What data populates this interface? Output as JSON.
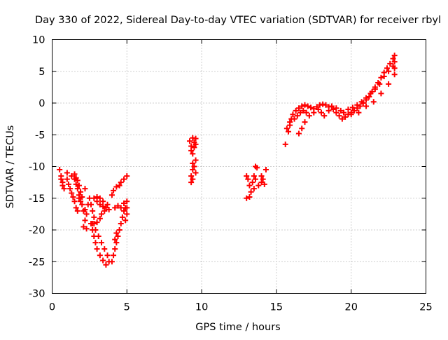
{
  "chart_data": {
    "type": "scatter",
    "title": "Day 330 of 2022, Sidereal Day-to-day VTEC variation (SDTVAR) for receiver rbyl",
    "xlabel": "GPS time / hours",
    "ylabel": "SDTVAR / TECUs",
    "xlim": [
      0,
      25
    ],
    "ylim": [
      -30,
      10
    ],
    "xticks": [
      0,
      5,
      10,
      15,
      20,
      25
    ],
    "yticks": [
      -30,
      -25,
      -20,
      -15,
      -10,
      -5,
      0,
      5,
      10
    ],
    "grid": true,
    "legend": "none",
    "marker": "plus",
    "color": "#ff0000",
    "series": [
      {
        "values": [
          [
            0.5,
            -10.5
          ],
          [
            0.6,
            -11.5
          ],
          [
            0.7,
            -12.5
          ],
          [
            0.8,
            -13.5
          ],
          [
            0.6,
            -12.0
          ],
          [
            0.7,
            -13.0
          ],
          [
            1.0,
            -11.0
          ],
          [
            1.0,
            -12.0
          ],
          [
            1.1,
            -12.8
          ],
          [
            1.2,
            -13.5
          ],
          [
            1.3,
            -14.2
          ],
          [
            1.4,
            -14.8
          ],
          [
            1.5,
            -15.5
          ],
          [
            1.6,
            -16.5
          ],
          [
            1.7,
            -17.0
          ],
          [
            1.3,
            -11.5
          ],
          [
            1.5,
            -12.0
          ],
          [
            1.6,
            -12.8
          ],
          [
            1.7,
            -13.5
          ],
          [
            1.8,
            -14.5
          ],
          [
            1.9,
            -15.5
          ],
          [
            1.5,
            -11.2
          ],
          [
            1.6,
            -11.8
          ],
          [
            1.7,
            -12.2
          ],
          [
            1.8,
            -13.0
          ],
          [
            1.9,
            -14.0
          ],
          [
            2.0,
            -14.8
          ],
          [
            1.8,
            -15.0
          ],
          [
            2.0,
            -16.0
          ],
          [
            2.1,
            -17.0
          ],
          [
            2.2,
            -18.5
          ],
          [
            2.1,
            -19.5
          ],
          [
            2.3,
            -19.8
          ],
          [
            2.2,
            -16.8
          ],
          [
            2.3,
            -17.5
          ],
          [
            2.4,
            -16.0
          ],
          [
            2.2,
            -13.5
          ],
          [
            2.5,
            -15.0
          ],
          [
            2.6,
            -16.0
          ],
          [
            2.7,
            -17.0
          ],
          [
            2.8,
            -18.0
          ],
          [
            2.6,
            -19.0
          ],
          [
            2.7,
            -20.0
          ],
          [
            2.8,
            -21.0
          ],
          [
            2.9,
            -22.0
          ],
          [
            3.0,
            -23.0
          ],
          [
            3.2,
            -24.0
          ],
          [
            3.4,
            -24.8
          ],
          [
            3.6,
            -25.5
          ],
          [
            2.7,
            -19.0
          ],
          [
            2.9,
            -20.0
          ],
          [
            3.1,
            -21.0
          ],
          [
            3.3,
            -22.0
          ],
          [
            3.5,
            -23.0
          ],
          [
            3.7,
            -24.0
          ],
          [
            3.8,
            -25.0
          ],
          [
            3.0,
            -15.5
          ],
          [
            3.2,
            -16.0
          ],
          [
            3.4,
            -16.3
          ],
          [
            3.6,
            -16.5
          ],
          [
            3.8,
            -16.8
          ],
          [
            3.3,
            -17.5
          ],
          [
            3.2,
            -18.2
          ],
          [
            3.0,
            -18.8
          ],
          [
            2.8,
            -19.0
          ],
          [
            3.5,
            -17.0
          ],
          [
            3.7,
            -16.0
          ],
          [
            2.8,
            -15.0
          ],
          [
            3.0,
            -14.8
          ],
          [
            3.2,
            -15.0
          ],
          [
            3.4,
            -15.5
          ],
          [
            4.0,
            -25.0
          ],
          [
            4.1,
            -24.0
          ],
          [
            4.2,
            -23.0
          ],
          [
            4.3,
            -22.0
          ],
          [
            4.4,
            -21.0
          ],
          [
            4.5,
            -20.0
          ],
          [
            4.6,
            -19.0
          ],
          [
            4.7,
            -18.0
          ],
          [
            4.8,
            -17.0
          ],
          [
            4.9,
            -16.5
          ],
          [
            4.2,
            -21.5
          ],
          [
            4.3,
            -20.5
          ],
          [
            4.0,
            -14.5
          ],
          [
            4.1,
            -13.8
          ],
          [
            4.3,
            -13.2
          ],
          [
            4.5,
            -13.0
          ],
          [
            4.6,
            -12.5
          ],
          [
            4.8,
            -12.0
          ],
          [
            5.0,
            -11.5
          ],
          [
            4.2,
            -16.5
          ],
          [
            4.4,
            -16.2
          ],
          [
            4.6,
            -16.5
          ],
          [
            4.8,
            -15.8
          ],
          [
            5.0,
            -15.5
          ],
          [
            5.0,
            -16.5
          ],
          [
            5.0,
            -17.5
          ],
          [
            4.9,
            -18.5
          ],
          [
            9.2,
            -6.0
          ],
          [
            9.3,
            -6.8
          ],
          [
            9.3,
            -7.5
          ],
          [
            9.4,
            -8.0
          ],
          [
            9.4,
            -5.5
          ],
          [
            9.5,
            -6.2
          ],
          [
            9.6,
            -5.6
          ],
          [
            9.6,
            -6.5
          ],
          [
            9.5,
            -7.0
          ],
          [
            9.4,
            -9.5
          ],
          [
            9.4,
            -10.5
          ],
          [
            9.3,
            -11.5
          ],
          [
            9.3,
            -12.5
          ],
          [
            9.6,
            -9.0
          ],
          [
            9.5,
            -10.0
          ],
          [
            9.6,
            -11.0
          ],
          [
            9.4,
            -12.0
          ],
          [
            13.0,
            -11.5
          ],
          [
            13.1,
            -12.0
          ],
          [
            13.2,
            -13.0
          ],
          [
            13.3,
            -14.0
          ],
          [
            13.2,
            -14.8
          ],
          [
            13.0,
            -15.0
          ],
          [
            13.4,
            -12.5
          ],
          [
            13.5,
            -13.5
          ],
          [
            13.6,
            -12.0
          ],
          [
            13.5,
            -11.5
          ],
          [
            13.6,
            -10.0
          ],
          [
            13.7,
            -10.2
          ],
          [
            13.8,
            -13.0
          ],
          [
            14.0,
            -12.5
          ],
          [
            14.1,
            -12.0
          ],
          [
            14.2,
            -12.8
          ],
          [
            14.3,
            -10.5
          ],
          [
            14.0,
            -11.5
          ],
          [
            15.6,
            -6.5
          ],
          [
            15.8,
            -4.5
          ],
          [
            15.9,
            -3.5
          ],
          [
            16.0,
            -2.5
          ],
          [
            16.1,
            -1.8
          ],
          [
            16.3,
            -1.2
          ],
          [
            16.5,
            -0.8
          ],
          [
            16.7,
            -0.5
          ],
          [
            16.9,
            -0.3
          ],
          [
            17.1,
            -0.5
          ],
          [
            17.3,
            -0.7
          ],
          [
            17.5,
            -0.9
          ],
          [
            17.7,
            -0.6
          ],
          [
            17.9,
            -0.3
          ],
          [
            18.1,
            -0.2
          ],
          [
            18.3,
            -0.3
          ],
          [
            18.5,
            -0.6
          ],
          [
            18.8,
            -1.0
          ],
          [
            19.0,
            -1.5
          ],
          [
            19.2,
            -2.0
          ],
          [
            19.4,
            -2.5
          ],
          [
            19.6,
            -2.2
          ],
          [
            19.8,
            -1.8
          ],
          [
            20.0,
            -1.5
          ],
          [
            20.2,
            -1.2
          ],
          [
            20.4,
            -0.8
          ],
          [
            20.6,
            -0.5
          ],
          [
            20.8,
            0.0
          ],
          [
            21.0,
            0.5
          ],
          [
            21.2,
            1.0
          ],
          [
            21.4,
            1.8
          ],
          [
            21.6,
            2.5
          ],
          [
            21.8,
            3.2
          ],
          [
            22.0,
            4.0
          ],
          [
            22.2,
            4.8
          ],
          [
            22.4,
            5.5
          ],
          [
            22.6,
            6.2
          ],
          [
            22.8,
            7.0
          ],
          [
            22.9,
            7.5
          ],
          [
            15.7,
            -4.0
          ],
          [
            15.9,
            -3.0
          ],
          [
            16.2,
            -2.5
          ],
          [
            16.4,
            -2.0
          ],
          [
            16.6,
            -1.5
          ],
          [
            16.8,
            -1.2
          ],
          [
            17.0,
            -1.5
          ],
          [
            17.2,
            -2.0
          ],
          [
            16.9,
            -3.0
          ],
          [
            16.7,
            -4.0
          ],
          [
            16.5,
            -4.8
          ],
          [
            17.5,
            -1.5
          ],
          [
            17.8,
            -1.0
          ],
          [
            18.0,
            -1.5
          ],
          [
            18.2,
            -2.0
          ],
          [
            18.5,
            -1.2
          ],
          [
            18.7,
            -0.5
          ],
          [
            19.0,
            -0.8
          ],
          [
            19.3,
            -1.2
          ],
          [
            19.5,
            -1.5
          ],
          [
            19.8,
            -1.0
          ],
          [
            20.1,
            -0.7
          ],
          [
            20.4,
            -0.3
          ],
          [
            20.7,
            0.2
          ],
          [
            21.0,
            0.8
          ],
          [
            21.3,
            1.5
          ],
          [
            21.6,
            2.2
          ],
          [
            21.9,
            3.0
          ],
          [
            22.2,
            4.2
          ],
          [
            22.5,
            5.0
          ],
          [
            22.8,
            5.8
          ],
          [
            22.9,
            6.5
          ],
          [
            20.0,
            -1.8
          ],
          [
            20.5,
            -1.5
          ],
          [
            21.0,
            -0.5
          ],
          [
            21.5,
            0.2
          ],
          [
            22.0,
            1.5
          ],
          [
            22.5,
            3.0
          ],
          [
            22.9,
            4.5
          ],
          [
            22.9,
            5.5
          ]
        ]
      }
    ]
  }
}
